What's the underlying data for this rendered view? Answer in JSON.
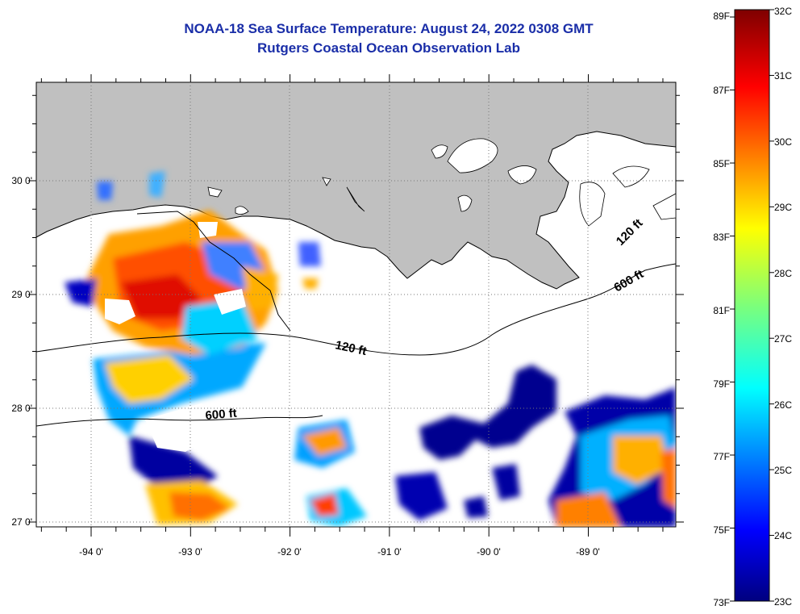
{
  "title": {
    "line1": "NOAA-18 Sea Surface Temperature:  August 24, 2022 0308 GMT",
    "line2": "Rutgers Coastal Ocean Observation Lab"
  },
  "map": {
    "lon_labels": [
      "-94 0'",
      "-93 0'",
      "-92 0'",
      "-91 0'",
      "-90 0'",
      "-89 0'"
    ],
    "lat_labels": [
      "30 0'",
      "29 0'",
      "28 0'",
      "27 0'"
    ],
    "contour_labels": [
      "120 ft",
      "600 ft",
      "120 ft",
      "600 ft"
    ],
    "land_color": "#c0c0c0",
    "cloud_color": "#ffffff"
  },
  "colorbar": {
    "fahrenheit_labels": [
      "89F",
      "87F",
      "85F",
      "83F",
      "81F",
      "79F",
      "77F",
      "75F",
      "73F"
    ],
    "celsius_labels": [
      "32C",
      "31C",
      "30C",
      "29C",
      "28C",
      "27C",
      "26C",
      "25C",
      "24C",
      "23C"
    ],
    "colormap": "jet"
  }
}
